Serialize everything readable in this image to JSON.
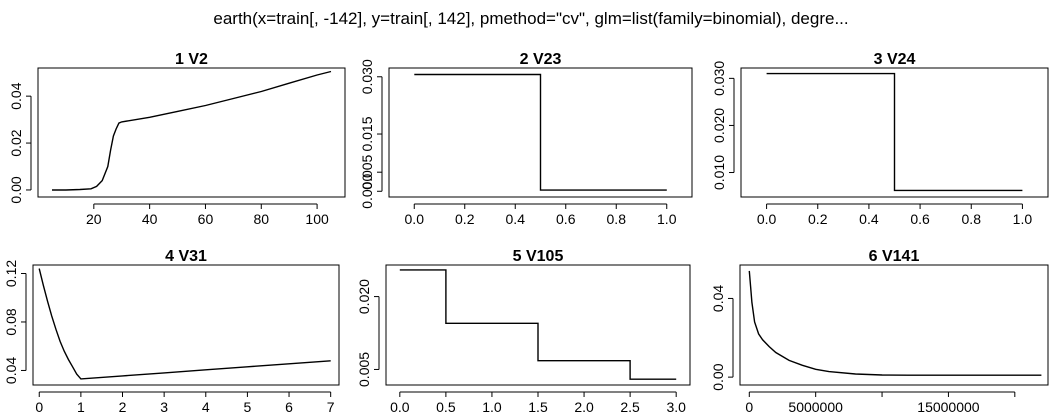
{
  "window": {
    "title": "earth(x=train[, -142], y=train[, 142], pmethod=\"cv\", glm=list(family=binomial), degre..."
  },
  "colors": {
    "background": "#ffffff",
    "line": "#000000",
    "axis": "#000000"
  },
  "chart_data": [
    {
      "type": "line",
      "title": "1  V2",
      "xlim": [
        0,
        110
      ],
      "ylim": [
        -0.003,
        0.052
      ],
      "xticks": [
        20,
        40,
        60,
        80,
        100
      ],
      "xtick_labels": [
        "20",
        "40",
        "60",
        "80",
        "100"
      ],
      "yticks": [
        0,
        0.02,
        0.04
      ],
      "ytick_labels": [
        "0.00",
        "0.02",
        "0.04"
      ],
      "x": [
        5,
        10,
        15,
        19,
        21,
        23,
        25,
        26,
        27,
        28,
        29,
        30,
        40,
        50,
        60,
        70,
        80,
        90,
        100,
        105
      ],
      "values": [
        0.0,
        0.0,
        0.0002,
        0.0005,
        0.0015,
        0.004,
        0.01,
        0.017,
        0.023,
        0.026,
        0.0285,
        0.029,
        0.031,
        0.0335,
        0.036,
        0.039,
        0.042,
        0.0455,
        0.049,
        0.0505
      ]
    },
    {
      "type": "line",
      "step": true,
      "title": "2  V23",
      "xlim": [
        -0.1,
        1.1
      ],
      "ylim": [
        -0.0015,
        0.0323
      ],
      "xticks": [
        0.0,
        0.2,
        0.4,
        0.6,
        0.8,
        1.0
      ],
      "xtick_labels": [
        "0.0",
        "0.2",
        "0.4",
        "0.6",
        "0.8",
        "1.0"
      ],
      "yticks": [
        0.0,
        0.005,
        0.015,
        0.03
      ],
      "ytick_labels": [
        "0.000",
        "0.005",
        "0.015",
        "0.030"
      ],
      "x": [
        0.0,
        0.5,
        0.5,
        1.0
      ],
      "values": [
        0.0306,
        0.0306,
        0.0003,
        0.0003
      ]
    },
    {
      "type": "line",
      "step": true,
      "title": "3  V24",
      "xlim": [
        -0.1,
        1.1
      ],
      "ylim": [
        0.0048,
        0.0322
      ],
      "xticks": [
        0.0,
        0.2,
        0.4,
        0.6,
        0.8,
        1.0
      ],
      "xtick_labels": [
        "0.0",
        "0.2",
        "0.4",
        "0.6",
        "0.8",
        "1.0"
      ],
      "yticks": [
        0.01,
        0.02,
        0.03
      ],
      "ytick_labels": [
        "0.010",
        "0.020",
        "0.030"
      ],
      "x": [
        0.0,
        0.5,
        0.5,
        1.0
      ],
      "values": [
        0.031,
        0.031,
        0.0062,
        0.0062
      ]
    },
    {
      "type": "line",
      "title": "4  V31",
      "xlim": [
        -0.15,
        7.2
      ],
      "ylim": [
        0.028,
        0.127
      ],
      "xticks": [
        0,
        1,
        2,
        3,
        4,
        5,
        6,
        7
      ],
      "xtick_labels": [
        "0",
        "1",
        "2",
        "3",
        "4",
        "5",
        "6",
        "7"
      ],
      "yticks": [
        0.04,
        0.08,
        0.12
      ],
      "ytick_labels": [
        "0.04",
        "0.08",
        "0.12"
      ],
      "x": [
        0,
        0.1,
        0.2,
        0.3,
        0.4,
        0.5,
        0.6,
        0.7,
        0.8,
        0.9,
        1.0,
        2,
        3,
        4,
        5,
        6,
        7
      ],
      "values": [
        0.124,
        0.11,
        0.097,
        0.085,
        0.074,
        0.064,
        0.056,
        0.049,
        0.043,
        0.037,
        0.033,
        0.0355,
        0.038,
        0.0405,
        0.043,
        0.0455,
        0.048
      ]
    },
    {
      "type": "line",
      "step": true,
      "title": "5  V105",
      "xlim": [
        -0.15,
        3.15
      ],
      "ylim": [
        0.0018,
        0.0265
      ],
      "xticks": [
        0.0,
        0.5,
        1.0,
        1.5,
        2.0,
        2.5,
        3.0
      ],
      "xtick_labels": [
        "0.0",
        "0.5",
        "1.0",
        "1.5",
        "2.0",
        "2.5",
        "3.0"
      ],
      "yticks": [
        0.005,
        0.02
      ],
      "ytick_labels": [
        "0.005",
        "0.020"
      ],
      "x": [
        0.0,
        0.5,
        0.5,
        1.5,
        1.5,
        2.5,
        2.5,
        3.0
      ],
      "values": [
        0.0255,
        0.0255,
        0.0145,
        0.0145,
        0.0068,
        0.0068,
        0.003,
        0.003
      ]
    },
    {
      "type": "line",
      "title": "6  V141",
      "xlim": [
        -700000,
        22500000
      ],
      "ylim": [
        -0.004,
        0.057
      ],
      "xticks": [
        0,
        5000000,
        10000000,
        15000000,
        20000000
      ],
      "xtick_labels": [
        "0",
        "5000000",
        "",
        "15000000",
        ""
      ],
      "yticks": [
        0.0,
        0.04
      ],
      "ytick_labels": [
        "0.00",
        "0.04"
      ],
      "x": [
        0,
        100000,
        200000,
        400000,
        700000,
        1000000,
        1500000,
        2000000,
        3000000,
        4000000,
        5000000,
        6000000,
        8000000,
        10000000,
        12000000,
        16000000,
        20000000,
        22000000
      ],
      "values": [
        0.054,
        0.046,
        0.038,
        0.028,
        0.022,
        0.019,
        0.0155,
        0.0125,
        0.0085,
        0.006,
        0.004,
        0.0028,
        0.0016,
        0.0011,
        0.001,
        0.001,
        0.001,
        0.001
      ]
    }
  ]
}
